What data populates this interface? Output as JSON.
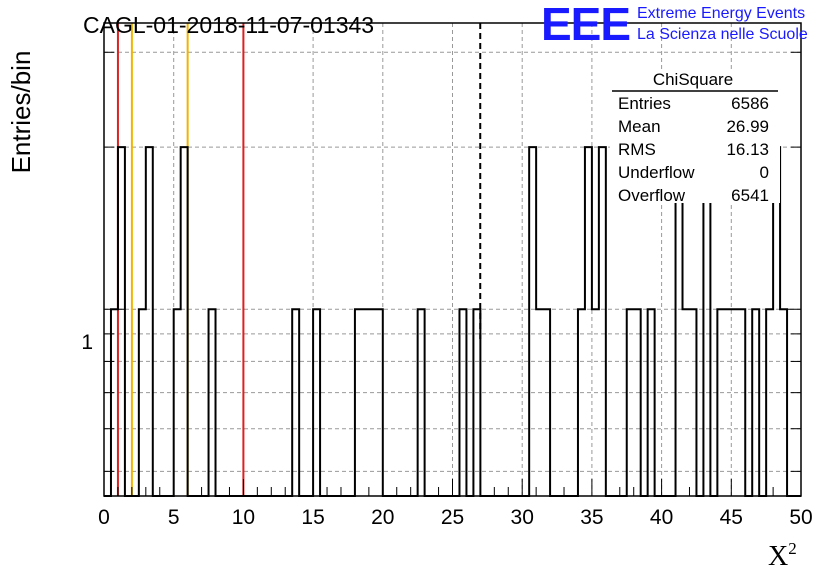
{
  "chart_data": {
    "type": "histogram",
    "title": "CAGL-01-2018-11-07-01343",
    "xlabel": "X",
    "xlabel_sup": "2",
    "ylabel": "Entries/bin",
    "xlim": [
      0,
      50
    ],
    "ylim": [
      0.45,
      3.4
    ],
    "yscale": "log",
    "grid": true,
    "bin_width": 0.5,
    "x_ticks": [
      "0",
      "5",
      "10",
      "15",
      "20",
      "25",
      "30",
      "35",
      "40",
      "45",
      "50"
    ],
    "y_tick_labels": [
      "1"
    ],
    "bins": [
      {
        "x": 0.5,
        "y": 1
      },
      {
        "x": 1.0,
        "y": 2
      },
      {
        "x": 2.5,
        "y": 1
      },
      {
        "x": 3.0,
        "y": 2
      },
      {
        "x": 5.0,
        "y": 1
      },
      {
        "x": 5.5,
        "y": 2
      },
      {
        "x": 7.5,
        "y": 1
      },
      {
        "x": 13.5,
        "y": 1
      },
      {
        "x": 15.0,
        "y": 1
      },
      {
        "x": 18.0,
        "y": 1
      },
      {
        "x": 18.5,
        "y": 1
      },
      {
        "x": 19.0,
        "y": 1
      },
      {
        "x": 19.5,
        "y": 1
      },
      {
        "x": 22.5,
        "y": 1
      },
      {
        "x": 25.5,
        "y": 1
      },
      {
        "x": 26.5,
        "y": 1
      },
      {
        "x": 30.5,
        "y": 2
      },
      {
        "x": 31.0,
        "y": 1
      },
      {
        "x": 31.5,
        "y": 1
      },
      {
        "x": 34.0,
        "y": 1
      },
      {
        "x": 34.5,
        "y": 2
      },
      {
        "x": 35.0,
        "y": 1
      },
      {
        "x": 35.5,
        "y": 2
      },
      {
        "x": 37.5,
        "y": 1
      },
      {
        "x": 38.0,
        "y": 1
      },
      {
        "x": 39.0,
        "y": 1
      },
      {
        "x": 41.0,
        "y": 2
      },
      {
        "x": 41.5,
        "y": 1
      },
      {
        "x": 42.0,
        "y": 1
      },
      {
        "x": 43.0,
        "y": 2
      },
      {
        "x": 44.0,
        "y": 1
      },
      {
        "x": 44.5,
        "y": 1
      },
      {
        "x": 45.0,
        "y": 1
      },
      {
        "x": 45.5,
        "y": 1
      },
      {
        "x": 46.5,
        "y": 1
      },
      {
        "x": 47.5,
        "y": 1
      },
      {
        "x": 48.0,
        "y": 2
      },
      {
        "x": 48.5,
        "y": 1
      }
    ],
    "vertical_lines": [
      {
        "x": 1,
        "color": "#dd2020",
        "style": "solid"
      },
      {
        "x": 2,
        "color": "#f0b400",
        "style": "solid"
      },
      {
        "x": 6,
        "color": "#f0b400",
        "style": "solid"
      },
      {
        "x": 10,
        "color": "#dd2020",
        "style": "solid"
      },
      {
        "x": 26.99,
        "color": "#000000",
        "style": "dashed"
      }
    ],
    "stats_box": {
      "title": "ChiSquare",
      "rows": [
        {
          "label": "Entries",
          "value": "6586"
        },
        {
          "label": "Mean",
          "value": "26.99"
        },
        {
          "label": "RMS",
          "value": "16.13"
        },
        {
          "label": "Underflow",
          "value": "0"
        },
        {
          "label": "Overflow",
          "value": "6541"
        }
      ]
    }
  },
  "logo": {
    "mark": "EEE",
    "line1": "Extreme Energy Events",
    "line2": "La Scienza nelle Scuole",
    "color": "#1a1aff"
  }
}
